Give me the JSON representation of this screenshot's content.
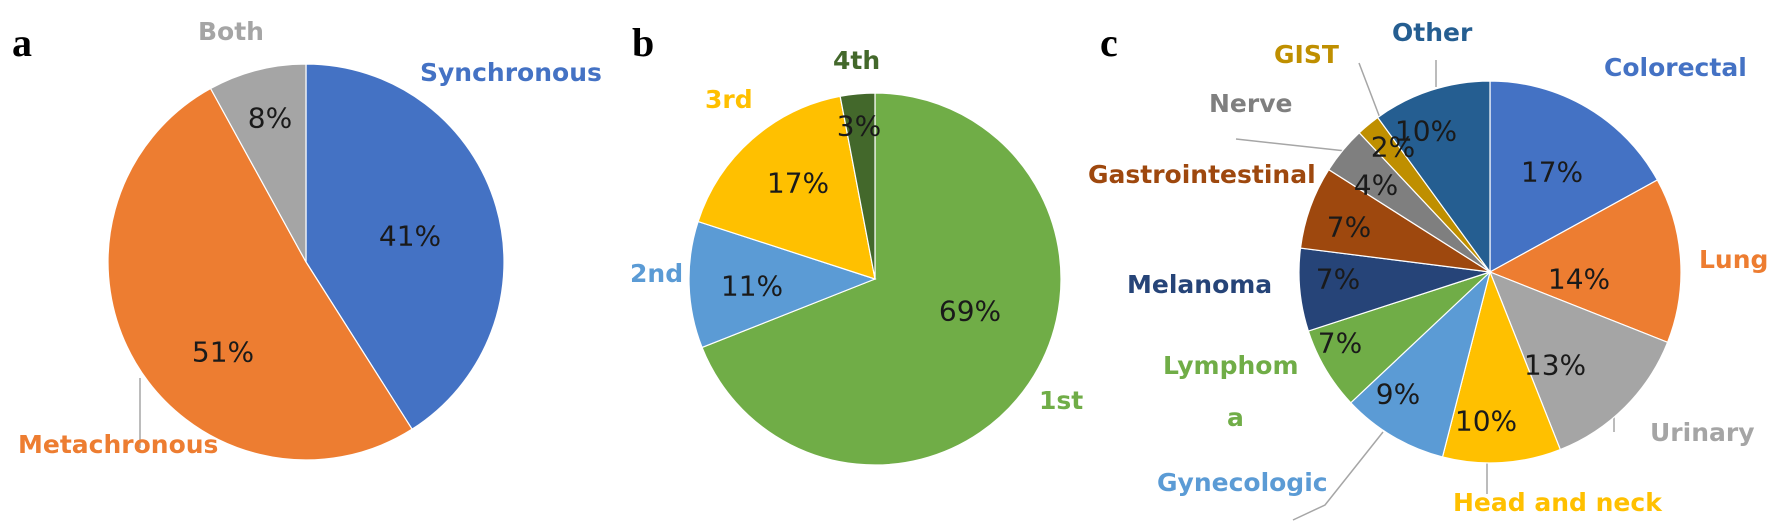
{
  "chart_data": [
    {
      "type": "pie",
      "panel_label": "a",
      "slices": [
        {
          "label": "Synchronous",
          "value": 41,
          "value_label": "41%",
          "color": "#4472C4"
        },
        {
          "label": "Metachronous",
          "value": 51,
          "value_label": "51%",
          "color": "#ED7D31"
        },
        {
          "label": "Both",
          "value": 8,
          "value_label": "8%",
          "color": "#A5A5A5"
        }
      ]
    },
    {
      "type": "pie",
      "panel_label": "b",
      "slices": [
        {
          "label": "1st",
          "value": 69,
          "value_label": "69%",
          "color": "#70AD47"
        },
        {
          "label": "2nd",
          "value": 11,
          "value_label": "11%",
          "color": "#5B9BD5"
        },
        {
          "label": "3rd",
          "value": 17,
          "value_label": "17%",
          "color": "#FFC000"
        },
        {
          "label": "4th",
          "value": 3,
          "value_label": "3%",
          "color": "#43682B"
        }
      ]
    },
    {
      "type": "pie",
      "panel_label": "c",
      "slices": [
        {
          "label": "Colorectal",
          "value": 17,
          "value_label": "17%",
          "color": "#4472C4"
        },
        {
          "label": "Lung",
          "value": 14,
          "value_label": "14%",
          "color": "#ED7D31"
        },
        {
          "label": "Urinary",
          "value": 13,
          "value_label": "13%",
          "color": "#A5A5A5"
        },
        {
          "label": "Head and neck",
          "value": 10,
          "value_label": "10%",
          "color": "#FFC000"
        },
        {
          "label": "Gynecologic",
          "value": 9,
          "value_label": "9%",
          "color": "#5B9BD5"
        },
        {
          "label": "Lymphom\na",
          "value": 7,
          "value_label": "7%",
          "color": "#70AD47"
        },
        {
          "label": "Melanoma",
          "value": 7,
          "value_label": "7%",
          "color": "#264478"
        },
        {
          "label": "Gastrointestinal",
          "value": 7,
          "value_label": "7%",
          "color": "#9E480E"
        },
        {
          "label": "Nerve",
          "value": 4,
          "value_label": "4%",
          "color": "#7F7F7F"
        },
        {
          "label": "GIST",
          "value": 2,
          "value_label": "2%",
          "color": "#BF8F00"
        },
        {
          "label": "Other",
          "value": 10,
          "value_label": "10%",
          "color": "#255E91"
        }
      ]
    }
  ]
}
